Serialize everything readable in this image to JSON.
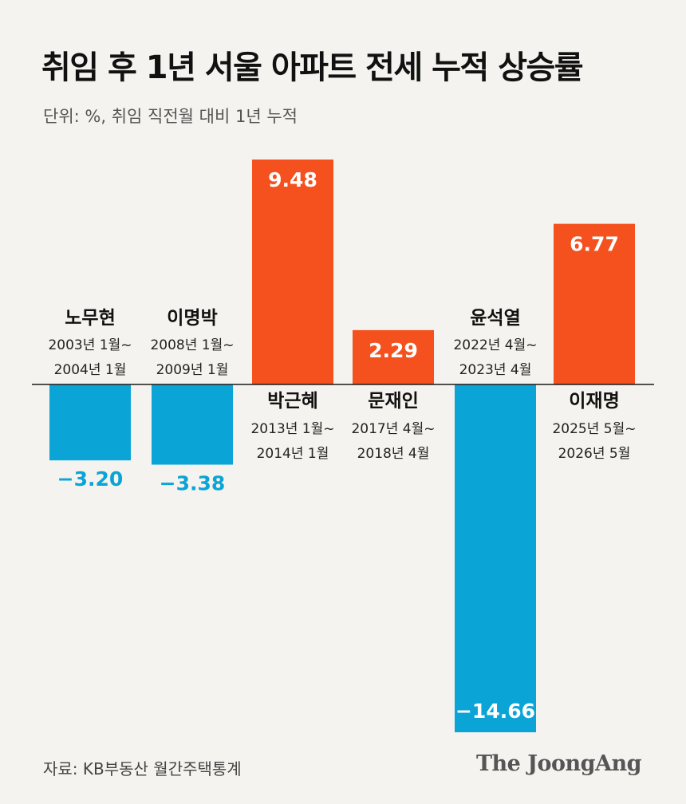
{
  "header": {
    "title": "취임 후 1년 서울 아파트 전세 누적 상승률",
    "subtitle": "단위: %, 취임 직전월 대비 1년 누적"
  },
  "footer": {
    "source": "자료: KB부동산 월간주택통계",
    "brand": "The JoongAng"
  },
  "colors": {
    "positive": "#f4511e",
    "negative": "#0aa4d6",
    "background": "#f4f3ef"
  },
  "chart_data": {
    "type": "bar",
    "title": "취임 후 1년 서울 아파트 전세 누적 상승률",
    "subtitle": "단위: %, 취임 직전월 대비 1년 누적",
    "xlabel": "",
    "ylabel": "",
    "categories": [
      "노무현",
      "이명박",
      "박근혜",
      "문재인",
      "윤석열",
      "이재명"
    ],
    "values": [
      -3.2,
      -3.38,
      9.48,
      2.29,
      -14.66,
      6.77
    ],
    "value_labels": [
      "−3.20",
      "−3.38",
      "9.48",
      "2.29",
      "−14.66",
      "6.77"
    ],
    "periods": [
      [
        "2003년 1월~",
        "2004년 1월"
      ],
      [
        "2008년 1월~",
        "2009년 1월"
      ],
      [
        "2013년 1월~",
        "2014년 1월"
      ],
      [
        "2017년 4월~",
        "2018년 4월"
      ],
      [
        "2022년 4월~",
        "2023년 4월"
      ],
      [
        "2025년 5월~",
        "2026년 5월"
      ]
    ],
    "ylim": [
      -14.66,
      9.48
    ],
    "grid": false,
    "legend": "none"
  }
}
